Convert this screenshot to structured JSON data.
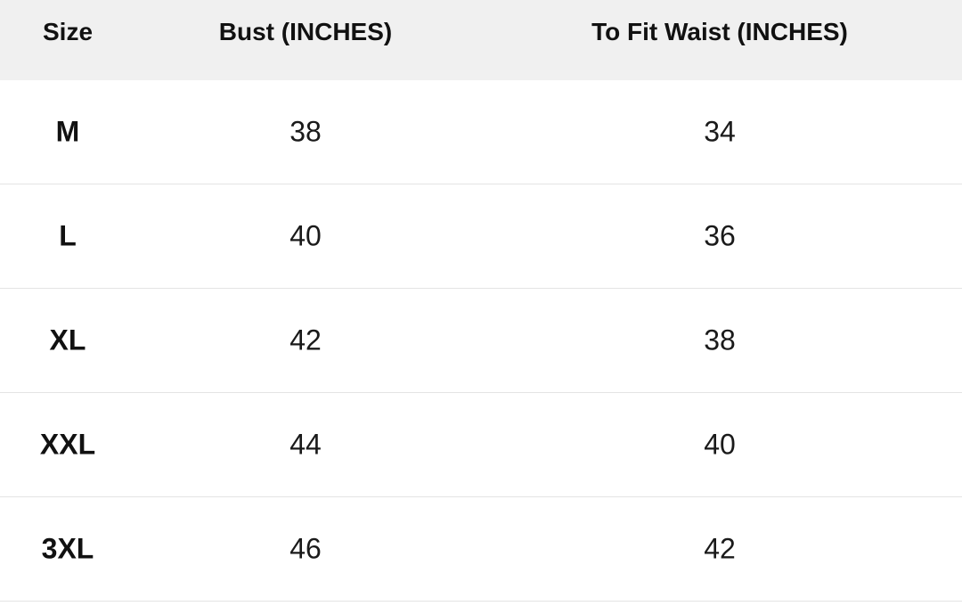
{
  "table": {
    "headers": {
      "size": "Size",
      "bust": "Bust (INCHES)",
      "waist": "To Fit Waist (INCHES)"
    },
    "rows": [
      {
        "size": "M",
        "bust": "38",
        "waist": "34"
      },
      {
        "size": "L",
        "bust": "40",
        "waist": "36"
      },
      {
        "size": "XL",
        "bust": "42",
        "waist": "38"
      },
      {
        "size": "XXL",
        "bust": "44",
        "waist": "40"
      },
      {
        "size": "3XL",
        "bust": "46",
        "waist": "42"
      }
    ]
  },
  "colors": {
    "header_background": "#f0f0f0",
    "row_divider": "#e4e4e4",
    "text": "#111111"
  }
}
